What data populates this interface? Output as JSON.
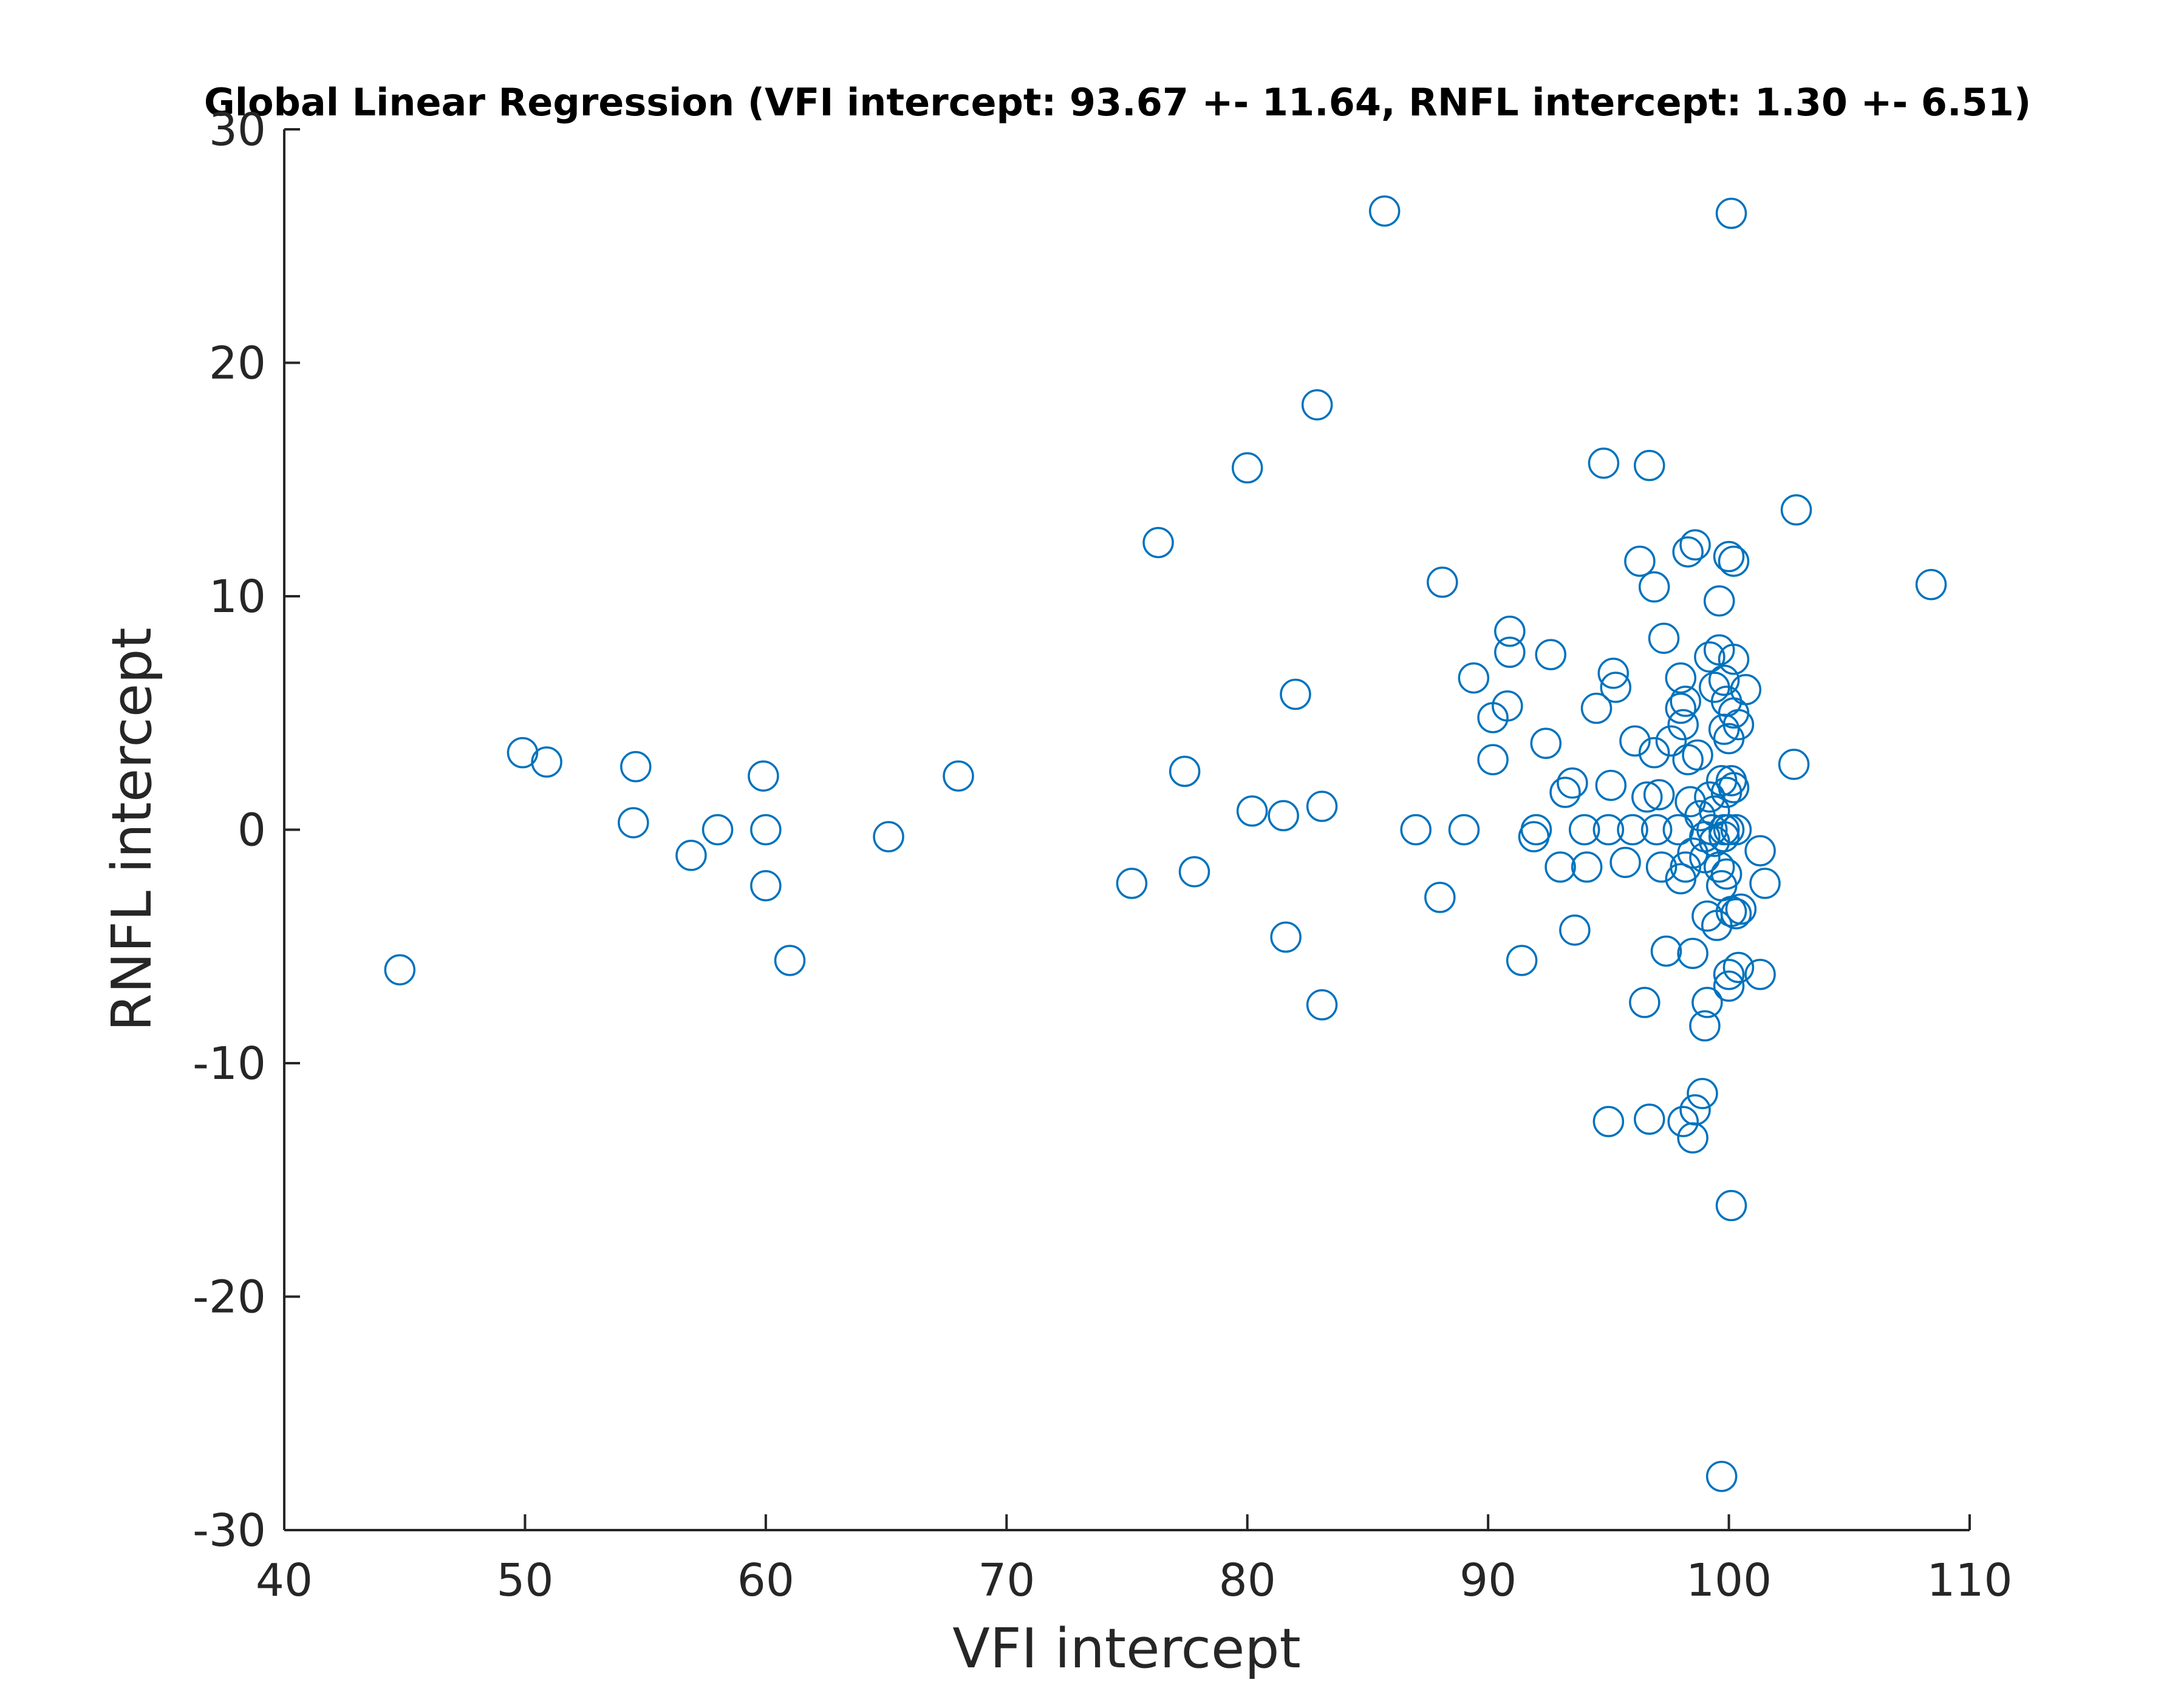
{
  "chart_data": {
    "type": "scatter",
    "title": "Global Linear Regression (VFI intercept: 93.67 +- 11.64, RNFL intercept: 1.30 +- 6.51)",
    "xlabel": "VFI intercept",
    "ylabel": "RNFL intercept",
    "xlim": [
      40,
      110
    ],
    "ylim": [
      -30,
      30
    ],
    "xticks": [
      40,
      50,
      60,
      70,
      80,
      90,
      100,
      110
    ],
    "yticks": [
      -30,
      -20,
      -10,
      0,
      10,
      20,
      30
    ],
    "xtick_labels": [
      "40",
      "50",
      "60",
      "70",
      "80",
      "90",
      "100",
      "110"
    ],
    "ytick_labels": [
      "-30",
      "-20",
      "-10",
      "0",
      "10",
      "20",
      "30"
    ],
    "grid": false,
    "marker": "open-circle",
    "color": "#0072BD",
    "points": [
      [
        44.8,
        -6.0
      ],
      [
        49.9,
        3.3
      ],
      [
        50.9,
        2.9
      ],
      [
        54.6,
        2.7
      ],
      [
        54.5,
        0.3
      ],
      [
        56.9,
        -1.1
      ],
      [
        58.0,
        0.0
      ],
      [
        59.9,
        2.3
      ],
      [
        60.0,
        0.0
      ],
      [
        60.0,
        -2.4
      ],
      [
        61.0,
        -5.6
      ],
      [
        65.1,
        -0.3
      ],
      [
        68.0,
        2.3
      ],
      [
        75.2,
        -2.3
      ],
      [
        76.3,
        12.3
      ],
      [
        77.4,
        2.5
      ],
      [
        77.8,
        -1.8
      ],
      [
        80.0,
        15.5
      ],
      [
        80.2,
        0.8
      ],
      [
        81.5,
        0.6
      ],
      [
        81.6,
        -4.6
      ],
      [
        82.0,
        5.8
      ],
      [
        82.9,
        18.2
      ],
      [
        83.1,
        1.0
      ],
      [
        83.1,
        -7.5
      ],
      [
        85.7,
        26.5
      ],
      [
        87.0,
        0.0
      ],
      [
        88.0,
        -2.9
      ],
      [
        88.1,
        10.6
      ],
      [
        89.0,
        0.0
      ],
      [
        89.4,
        6.5
      ],
      [
        90.2,
        3.0
      ],
      [
        90.2,
        4.8
      ],
      [
        90.8,
        5.3
      ],
      [
        90.9,
        8.5
      ],
      [
        90.9,
        7.6
      ],
      [
        91.4,
        -5.6
      ],
      [
        91.9,
        -0.3
      ],
      [
        92.0,
        0.0
      ],
      [
        92.4,
        3.7
      ],
      [
        92.6,
        7.5
      ],
      [
        93.0,
        -1.6
      ],
      [
        93.2,
        1.6
      ],
      [
        93.5,
        2.0
      ],
      [
        93.6,
        -4.3
      ],
      [
        94.0,
        0.0
      ],
      [
        94.1,
        -1.6
      ],
      [
        94.5,
        5.2
      ],
      [
        94.8,
        15.7
      ],
      [
        95.0,
        0.0
      ],
      [
        95.0,
        -12.5
      ],
      [
        95.1,
        1.9
      ],
      [
        95.2,
        6.7
      ],
      [
        95.3,
        6.1
      ],
      [
        95.7,
        -1.4
      ],
      [
        96.0,
        0.0
      ],
      [
        96.1,
        3.8
      ],
      [
        96.3,
        11.5
      ],
      [
        96.5,
        -7.4
      ],
      [
        96.6,
        1.4
      ],
      [
        96.7,
        15.6
      ],
      [
        96.7,
        -12.4
      ],
      [
        96.9,
        10.4
      ],
      [
        96.9,
        3.3
      ],
      [
        97.0,
        0.0
      ],
      [
        97.1,
        1.5
      ],
      [
        97.2,
        -1.6
      ],
      [
        97.3,
        8.2
      ],
      [
        97.4,
        -5.2
      ],
      [
        97.6,
        3.8
      ],
      [
        97.9,
        0.0
      ],
      [
        98.0,
        6.5
      ],
      [
        98.0,
        5.2
      ],
      [
        98.0,
        -2.1
      ],
      [
        98.1,
        -12.5
      ],
      [
        98.1,
        4.5
      ],
      [
        98.2,
        -1.6
      ],
      [
        98.2,
        5.5
      ],
      [
        98.3,
        3.0
      ],
      [
        98.3,
        11.9
      ],
      [
        98.4,
        1.2
      ],
      [
        98.5,
        -1.0
      ],
      [
        98.5,
        -13.2
      ],
      [
        98.5,
        -5.3
      ],
      [
        98.6,
        -12.0
      ],
      [
        98.6,
        12.2
      ],
      [
        98.7,
        3.2
      ],
      [
        98.8,
        0.6
      ],
      [
        98.9,
        -11.3
      ],
      [
        99.0,
        -0.3
      ],
      [
        99.0,
        -1.2
      ],
      [
        99.0,
        -8.4
      ],
      [
        99.1,
        -3.7
      ],
      [
        99.1,
        -7.4
      ],
      [
        99.2,
        7.4
      ],
      [
        99.2,
        1.4
      ],
      [
        99.3,
        0.0
      ],
      [
        99.4,
        -0.5
      ],
      [
        99.4,
        6.1
      ],
      [
        99.4,
        0.8
      ],
      [
        99.5,
        -4.1
      ],
      [
        99.6,
        9.8
      ],
      [
        99.6,
        7.7
      ],
      [
        99.6,
        -1.6
      ],
      [
        99.7,
        -27.7
      ],
      [
        99.7,
        -2.4
      ],
      [
        99.7,
        2.1
      ],
      [
        99.8,
        0.0
      ],
      [
        99.8,
        6.4
      ],
      [
        99.8,
        4.3
      ],
      [
        99.8,
        -0.3
      ],
      [
        99.9,
        5.5
      ],
      [
        99.9,
        1.6
      ],
      [
        99.9,
        -1.9
      ],
      [
        100.0,
        -6.7
      ],
      [
        100.0,
        -6.2
      ],
      [
        100.0,
        11.7
      ],
      [
        100.0,
        3.9
      ],
      [
        100.0,
        0.0
      ],
      [
        100.1,
        -3.5
      ],
      [
        100.1,
        26.4
      ],
      [
        100.1,
        2.1
      ],
      [
        100.1,
        -16.1
      ],
      [
        100.2,
        7.3
      ],
      [
        100.2,
        5.0
      ],
      [
        100.2,
        11.5
      ],
      [
        100.2,
        1.8
      ],
      [
        100.3,
        -3.6
      ],
      [
        100.3,
        0.0
      ],
      [
        100.4,
        -5.9
      ],
      [
        100.4,
        4.5
      ],
      [
        100.5,
        -3.4
      ],
      [
        100.7,
        6.0
      ],
      [
        101.3,
        -0.9
      ],
      [
        101.3,
        -6.2
      ],
      [
        101.5,
        -2.3
      ],
      [
        102.7,
        2.8
      ],
      [
        102.8,
        13.7
      ],
      [
        108.4,
        10.5
      ]
    ]
  }
}
